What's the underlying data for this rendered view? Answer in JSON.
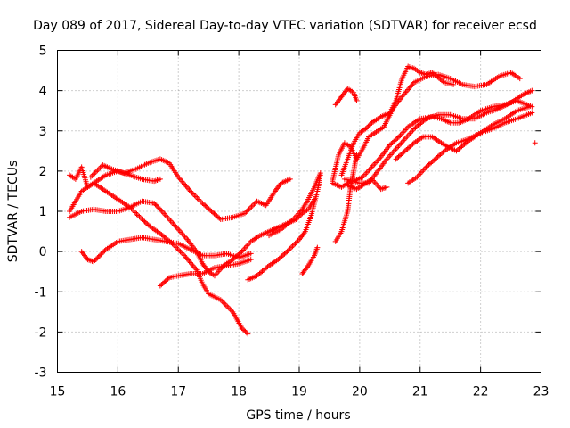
{
  "chart_data": {
    "type": "scatter",
    "title": "Day 089 of 2017, Sidereal Day-to-day VTEC variation (SDTVAR) for receiver ecsd",
    "xlabel": "GPS time / hours",
    "ylabel": "SDTVAR / TECUs",
    "xlim": [
      15,
      23
    ],
    "ylim": [
      -3,
      5
    ],
    "xticks": [
      "15",
      "16",
      "17",
      "18",
      "19",
      "20",
      "21",
      "22",
      "23"
    ],
    "yticks": [
      "-3",
      "-2",
      "-1",
      "0",
      "1",
      "2",
      "3",
      "4",
      "5"
    ],
    "grid": true,
    "marker": "+",
    "color": "#ff0000",
    "series": [
      {
        "points": [
          [
            15.2,
            1.9
          ],
          [
            15.3,
            1.8
          ],
          [
            15.4,
            2.1
          ],
          [
            15.5,
            1.6
          ],
          [
            15.6,
            1.7
          ],
          [
            15.75,
            1.55
          ],
          [
            15.9,
            1.4
          ],
          [
            16.0,
            1.3
          ],
          [
            16.2,
            1.1
          ],
          [
            16.4,
            0.8
          ],
          [
            16.55,
            0.6
          ],
          [
            16.7,
            0.45
          ],
          [
            16.9,
            0.2
          ],
          [
            17.1,
            -0.1
          ],
          [
            17.3,
            -0.45
          ],
          [
            17.4,
            -0.8
          ],
          [
            17.5,
            -1.05
          ],
          [
            17.7,
            -1.2
          ],
          [
            17.9,
            -1.5
          ],
          [
            18.05,
            -1.9
          ],
          [
            18.15,
            -2.05
          ]
        ]
      },
      {
        "points": [
          [
            15.2,
            1.0
          ],
          [
            15.4,
            1.5
          ],
          [
            15.6,
            1.7
          ],
          [
            15.8,
            1.9
          ],
          [
            16.0,
            2.0
          ],
          [
            16.2,
            1.9
          ],
          [
            16.4,
            1.8
          ],
          [
            16.6,
            1.75
          ],
          [
            16.7,
            1.8
          ]
        ]
      },
      {
        "points": [
          [
            15.55,
            1.85
          ],
          [
            15.75,
            2.15
          ],
          [
            15.9,
            2.05
          ],
          [
            16.1,
            1.95
          ],
          [
            16.3,
            2.05
          ],
          [
            16.5,
            2.2
          ],
          [
            16.7,
            2.3
          ],
          [
            16.85,
            2.2
          ],
          [
            17.0,
            1.85
          ],
          [
            17.2,
            1.5
          ],
          [
            17.4,
            1.2
          ],
          [
            17.55,
            1.0
          ],
          [
            17.7,
            0.8
          ],
          [
            17.9,
            0.85
          ],
          [
            18.1,
            0.95
          ],
          [
            18.3,
            1.25
          ],
          [
            18.45,
            1.15
          ],
          [
            18.6,
            1.5
          ],
          [
            18.7,
            1.7
          ],
          [
            18.85,
            1.8
          ]
        ]
      },
      {
        "points": [
          [
            15.2,
            0.85
          ],
          [
            15.4,
            1.0
          ],
          [
            15.6,
            1.05
          ],
          [
            15.8,
            1.0
          ],
          [
            16.0,
            1.0
          ],
          [
            16.2,
            1.1
          ],
          [
            16.4,
            1.25
          ],
          [
            16.6,
            1.2
          ],
          [
            16.7,
            1.05
          ],
          [
            16.85,
            0.8
          ],
          [
            17.0,
            0.55
          ],
          [
            17.15,
            0.3
          ],
          [
            17.3,
            0.0
          ],
          [
            17.4,
            -0.3
          ],
          [
            17.5,
            -0.5
          ],
          [
            17.6,
            -0.6
          ],
          [
            17.75,
            -0.35
          ],
          [
            17.9,
            -0.2
          ],
          [
            18.05,
            0.0
          ],
          [
            18.2,
            0.25
          ],
          [
            18.35,
            0.4
          ],
          [
            18.5,
            0.5
          ],
          [
            18.65,
            0.6
          ],
          [
            18.8,
            0.7
          ],
          [
            18.95,
            0.8
          ],
          [
            19.05,
            0.95
          ],
          [
            19.15,
            1.05
          ],
          [
            19.25,
            1.3
          ]
        ]
      },
      {
        "points": [
          [
            15.4,
            0.0
          ],
          [
            15.5,
            -0.2
          ],
          [
            15.6,
            -0.25
          ],
          [
            15.7,
            -0.1
          ],
          [
            15.8,
            0.05
          ],
          [
            16.0,
            0.25
          ],
          [
            16.2,
            0.3
          ],
          [
            16.4,
            0.35
          ],
          [
            16.6,
            0.3
          ],
          [
            16.8,
            0.25
          ],
          [
            17.0,
            0.2
          ],
          [
            17.2,
            0.05
          ],
          [
            17.4,
            -0.1
          ],
          [
            17.6,
            -0.1
          ],
          [
            17.8,
            -0.05
          ],
          [
            18.0,
            -0.15
          ],
          [
            18.2,
            -0.05
          ]
        ]
      },
      {
        "points": [
          [
            16.7,
            -0.85
          ],
          [
            16.85,
            -0.65
          ],
          [
            17.0,
            -0.6
          ],
          [
            17.2,
            -0.55
          ],
          [
            17.4,
            -0.55
          ],
          [
            17.6,
            -0.4
          ],
          [
            17.8,
            -0.35
          ],
          [
            18.0,
            -0.3
          ],
          [
            18.2,
            -0.2
          ]
        ]
      },
      {
        "points": [
          [
            18.15,
            -0.7
          ],
          [
            18.3,
            -0.6
          ],
          [
            18.5,
            -0.35
          ],
          [
            18.65,
            -0.2
          ],
          [
            18.8,
            0.0
          ],
          [
            19.0,
            0.3
          ],
          [
            19.1,
            0.5
          ],
          [
            19.2,
            0.9
          ],
          [
            19.3,
            1.5
          ],
          [
            19.35,
            1.9
          ]
        ]
      },
      {
        "points": [
          [
            18.5,
            0.4
          ],
          [
            18.7,
            0.55
          ],
          [
            18.9,
            0.8
          ],
          [
            19.05,
            1.05
          ],
          [
            19.15,
            1.3
          ],
          [
            19.25,
            1.6
          ],
          [
            19.35,
            1.95
          ]
        ]
      },
      {
        "points": [
          [
            19.05,
            -0.55
          ],
          [
            19.15,
            -0.35
          ],
          [
            19.25,
            -0.1
          ],
          [
            19.3,
            0.1
          ]
        ]
      },
      {
        "points": [
          [
            19.6,
            3.65
          ],
          [
            19.7,
            3.85
          ],
          [
            19.8,
            4.05
          ],
          [
            19.9,
            3.95
          ],
          [
            19.95,
            3.75
          ]
        ]
      },
      {
        "points": [
          [
            19.55,
            1.75
          ],
          [
            19.65,
            2.4
          ],
          [
            19.75,
            2.7
          ],
          [
            19.85,
            2.6
          ],
          [
            19.95,
            2.3
          ],
          [
            20.05,
            2.55
          ],
          [
            20.15,
            2.85
          ],
          [
            20.25,
            2.95
          ],
          [
            20.4,
            3.1
          ],
          [
            20.55,
            3.55
          ],
          [
            20.7,
            3.85
          ],
          [
            20.9,
            4.2
          ],
          [
            21.1,
            4.35
          ],
          [
            21.3,
            4.4
          ],
          [
            21.5,
            4.3
          ],
          [
            21.7,
            4.15
          ],
          [
            21.9,
            4.1
          ],
          [
            22.1,
            4.15
          ],
          [
            22.3,
            4.35
          ],
          [
            22.5,
            4.45
          ],
          [
            22.65,
            4.3
          ]
        ]
      },
      {
        "points": [
          [
            19.7,
            1.9
          ],
          [
            19.8,
            2.3
          ],
          [
            19.9,
            2.7
          ],
          [
            20.0,
            2.95
          ],
          [
            20.1,
            3.05
          ],
          [
            20.2,
            3.2
          ],
          [
            20.35,
            3.35
          ],
          [
            20.5,
            3.45
          ],
          [
            20.6,
            3.75
          ],
          [
            20.7,
            4.3
          ],
          [
            20.8,
            4.6
          ],
          [
            20.9,
            4.55
          ],
          [
            21.0,
            4.45
          ],
          [
            21.1,
            4.4
          ],
          [
            21.2,
            4.45
          ],
          [
            21.4,
            4.2
          ],
          [
            21.55,
            4.15
          ]
        ]
      },
      {
        "points": [
          [
            19.55,
            1.7
          ],
          [
            19.7,
            1.6
          ],
          [
            19.85,
            1.75
          ],
          [
            20.0,
            1.7
          ],
          [
            20.15,
            1.7
          ],
          [
            20.3,
            2.0
          ],
          [
            20.45,
            2.3
          ],
          [
            20.6,
            2.55
          ],
          [
            20.75,
            2.8
          ],
          [
            20.9,
            3.05
          ],
          [
            21.1,
            3.3
          ],
          [
            21.3,
            3.4
          ],
          [
            21.5,
            3.4
          ],
          [
            21.7,
            3.3
          ],
          [
            21.9,
            3.3
          ],
          [
            22.1,
            3.45
          ],
          [
            22.3,
            3.55
          ],
          [
            22.5,
            3.7
          ],
          [
            22.7,
            3.9
          ],
          [
            22.85,
            4.0
          ]
        ]
      },
      {
        "points": [
          [
            19.75,
            1.8
          ],
          [
            19.9,
            1.75
          ],
          [
            20.05,
            1.85
          ],
          [
            20.2,
            2.1
          ],
          [
            20.35,
            2.35
          ],
          [
            20.5,
            2.65
          ],
          [
            20.65,
            2.85
          ],
          [
            20.8,
            3.1
          ],
          [
            21.0,
            3.3
          ],
          [
            21.2,
            3.35
          ],
          [
            21.35,
            3.3
          ],
          [
            21.5,
            3.2
          ],
          [
            21.65,
            3.2
          ],
          [
            21.8,
            3.3
          ],
          [
            22.0,
            3.5
          ],
          [
            22.2,
            3.6
          ],
          [
            22.4,
            3.65
          ],
          [
            22.6,
            3.75
          ],
          [
            22.85,
            3.6
          ]
        ]
      },
      {
        "points": [
          [
            19.8,
            1.65
          ],
          [
            19.95,
            1.55
          ],
          [
            20.05,
            1.65
          ],
          [
            20.2,
            1.8
          ],
          [
            20.35,
            1.55
          ],
          [
            20.45,
            1.6
          ]
        ]
      },
      {
        "points": [
          [
            20.8,
            1.7
          ],
          [
            20.95,
            1.85
          ],
          [
            21.1,
            2.1
          ],
          [
            21.25,
            2.3
          ],
          [
            21.4,
            2.5
          ],
          [
            21.6,
            2.7
          ],
          [
            21.8,
            2.8
          ],
          [
            22.0,
            2.95
          ],
          [
            22.2,
            3.15
          ],
          [
            22.4,
            3.3
          ],
          [
            22.6,
            3.5
          ],
          [
            22.8,
            3.6
          ]
        ]
      },
      {
        "points": [
          [
            20.6,
            2.3
          ],
          [
            20.75,
            2.5
          ],
          [
            20.9,
            2.7
          ],
          [
            21.05,
            2.85
          ],
          [
            21.2,
            2.85
          ],
          [
            21.4,
            2.65
          ],
          [
            21.6,
            2.5
          ],
          [
            21.8,
            2.75
          ],
          [
            22.0,
            2.95
          ],
          [
            22.2,
            3.05
          ],
          [
            22.4,
            3.2
          ],
          [
            22.6,
            3.3
          ],
          [
            22.85,
            3.45
          ]
        ]
      },
      {
        "points": [
          [
            19.6,
            0.25
          ],
          [
            19.7,
            0.5
          ],
          [
            19.8,
            1.0
          ],
          [
            19.85,
            1.6
          ],
          [
            19.9,
            2.0
          ],
          [
            19.95,
            2.4
          ]
        ]
      },
      {
        "points": [
          [
            22.9,
            2.7
          ]
        ]
      }
    ]
  }
}
